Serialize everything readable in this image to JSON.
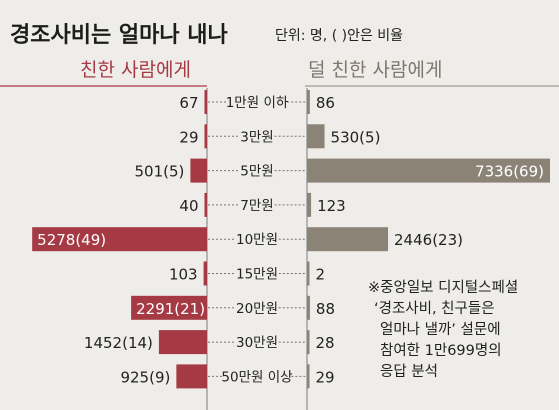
{
  "header": {
    "title": "경조사비는 얼마나 내나",
    "unit_note": "단위: 명, ( )안은 비율"
  },
  "chart_data": {
    "type": "bar",
    "title": "경조사비는 얼마나 내나",
    "subtitle": "단위: 명, ( )안은 비율",
    "categories": [
      "1만원 이하",
      "3만원",
      "5만원",
      "7만원",
      "10만원",
      "15만원",
      "20만원",
      "30만원",
      "50만원 이상"
    ],
    "series": [
      {
        "name": "친한 사람에게",
        "color": "#a63a44",
        "side": "left",
        "values": [
          67,
          29,
          501,
          40,
          5278,
          103,
          2291,
          1452,
          925
        ],
        "labels": [
          "67",
          "29",
          "501(5)",
          "40",
          "5278(49)",
          "103",
          "2291(21)",
          "1452(14)",
          "925(9)"
        ]
      },
      {
        "name": "덜 친한 사람에게",
        "color": "#8c8377",
        "side": "right",
        "values": [
          86,
          530,
          7336,
          123,
          2446,
          2,
          88,
          28,
          29
        ],
        "labels": [
          "86",
          "530(5)",
          "7336(69)",
          "123",
          "2446(23)",
          "2",
          "88",
          "28",
          "29"
        ]
      }
    ],
    "xlim": [
      0,
      7336
    ],
    "grid": false,
    "legend": "top"
  },
  "note": {
    "lines": [
      "※중앙일보 디지털스페셜",
      "‘경조사비, 친구들은",
      "얼마나 낼까’ 설문에",
      "참여한 1만699명의",
      "응답 분석"
    ]
  }
}
